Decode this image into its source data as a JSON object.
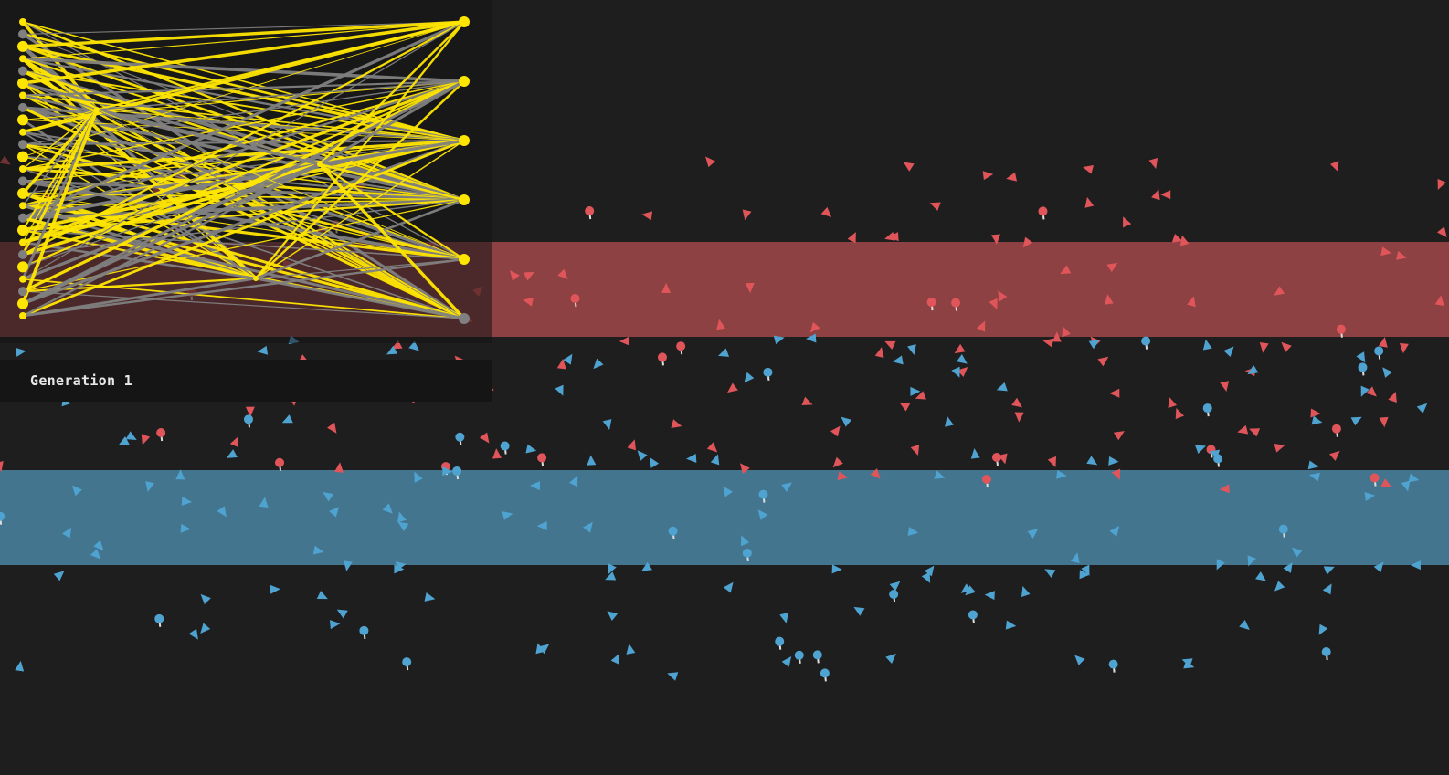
{
  "generation_label": "Generation 1",
  "colors": {
    "background": "#1e1e1e",
    "red_zone": "#8e4143",
    "blue_zone": "#44758f",
    "red_agent": "#e0555a",
    "blue_agent": "#4fa3d1",
    "nn_active": "#ffe600",
    "nn_inactive": "#808080"
  },
  "network": {
    "input_count": 25,
    "hidden_count": 3,
    "output_count": 6
  },
  "icons": {
    "agent_shape": "triangle-arrow",
    "eating_agent_shape": "circle-with-tail"
  }
}
